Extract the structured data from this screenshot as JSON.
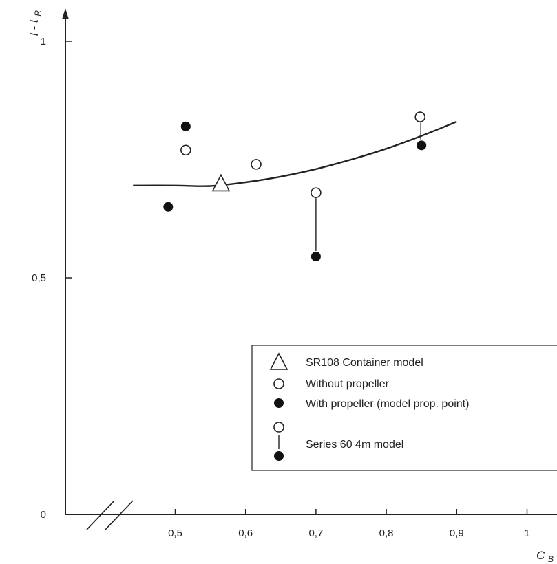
{
  "chart_data": {
    "type": "scatter",
    "title": "",
    "ylabel": "l - t",
    "ylabel_sub": "R",
    "xlabel": "C",
    "xlabel_sub": "B",
    "xlim": [
      0.43,
      1.05
    ],
    "ylim": [
      0,
      1.05
    ],
    "x_ticks": [
      {
        "value": 0.5,
        "label": "0,5"
      },
      {
        "value": 0.6,
        "label": "0,6"
      },
      {
        "value": 0.7,
        "label": "0,7"
      },
      {
        "value": 0.8,
        "label": "0,8"
      },
      {
        "value": 0.9,
        "label": "0,9"
      },
      {
        "value": 1.0,
        "label": "1"
      }
    ],
    "y_ticks": [
      {
        "value": 0,
        "label": "0"
      },
      {
        "value": 0.5,
        "label": "0,5"
      },
      {
        "value": 1.0,
        "label": "1"
      }
    ],
    "axis_break": true,
    "grid": false,
    "legend_position": "lower-right",
    "series": [
      {
        "name": "SR108 Container model",
        "marker": "triangle",
        "points": [
          {
            "x": 0.565,
            "y": 0.7
          }
        ]
      },
      {
        "name": "Without propeller",
        "marker": "open-circle",
        "points": [
          {
            "x": 0.515,
            "y": 0.77
          },
          {
            "x": 0.615,
            "y": 0.74
          },
          {
            "x": 0.7,
            "y": 0.68
          },
          {
            "x": 0.848,
            "y": 0.84
          }
        ]
      },
      {
        "name": "With propeller (model prop. point)",
        "marker": "filled-circle",
        "points": [
          {
            "x": 0.49,
            "y": 0.65
          },
          {
            "x": 0.515,
            "y": 0.82
          },
          {
            "x": 0.7,
            "y": 0.545
          },
          {
            "x": 0.85,
            "y": 0.78
          }
        ]
      }
    ],
    "paired_links": [
      {
        "x": 0.7,
        "y_from": 0.68,
        "y_to": 0.545
      },
      {
        "x": 0.849,
        "y_from": 0.84,
        "y_to": 0.78
      }
    ],
    "trend_curve": [
      {
        "x": 0.44,
        "y": 0.695
      },
      {
        "x": 0.5,
        "y": 0.695
      },
      {
        "x": 0.55,
        "y": 0.694
      },
      {
        "x": 0.6,
        "y": 0.702
      },
      {
        "x": 0.65,
        "y": 0.714
      },
      {
        "x": 0.7,
        "y": 0.73
      },
      {
        "x": 0.75,
        "y": 0.75
      },
      {
        "x": 0.8,
        "y": 0.773
      },
      {
        "x": 0.85,
        "y": 0.8
      },
      {
        "x": 0.9,
        "y": 0.83
      }
    ],
    "legend": [
      {
        "marker": "triangle",
        "label": "SR108 Container model"
      },
      {
        "marker": "open-circle",
        "label": "Without propeller"
      },
      {
        "marker": "filled-circle",
        "label": "With propeller (model prop. point)"
      },
      {
        "marker": "paired",
        "label": "Series 60 4m model"
      }
    ]
  }
}
